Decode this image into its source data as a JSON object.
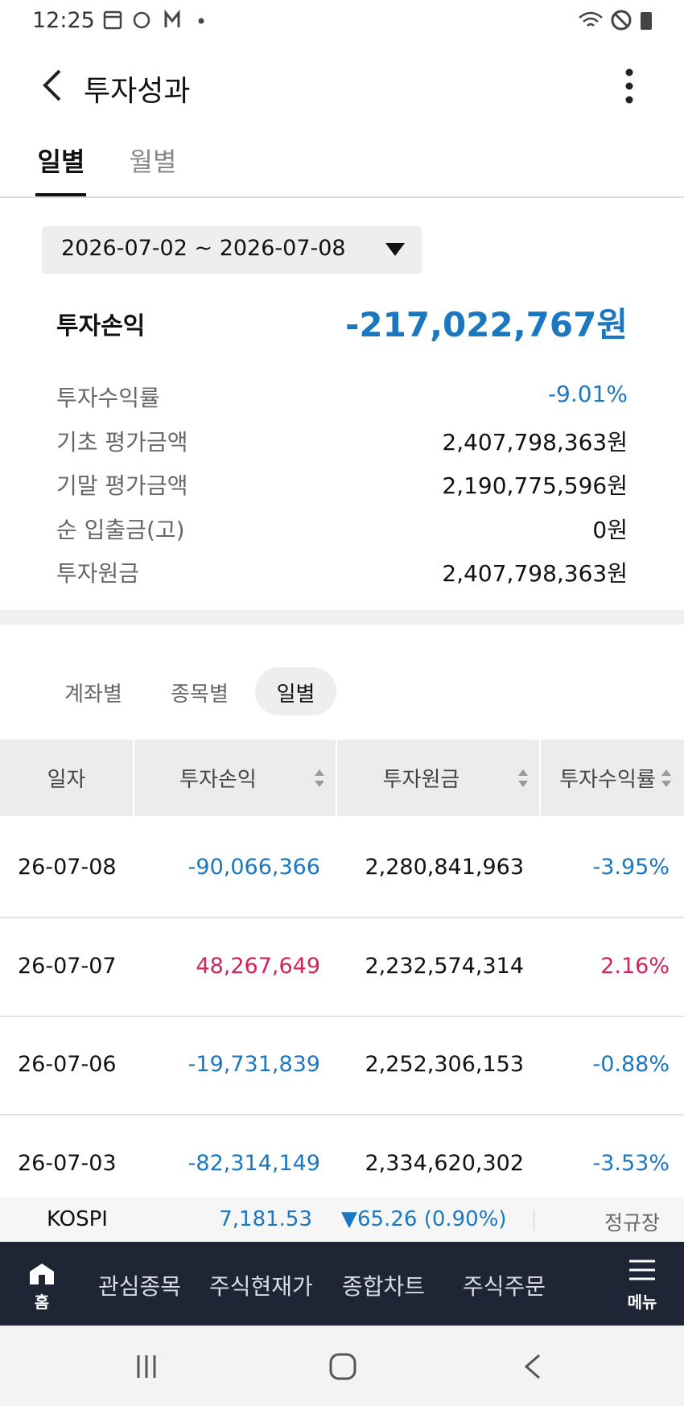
{
  "status": {
    "time": "12:25"
  },
  "header": {
    "title": "투자성과"
  },
  "tabs": [
    "일별",
    "월별"
  ],
  "period": "2026-07-02 ~ 2026-07-08",
  "summary": {
    "label": "투자손익",
    "value": "-217,022,767원"
  },
  "details": [
    [
      "투자수익률",
      "-9.01%"
    ],
    [
      "기초 평가금액",
      "2,407,798,363원"
    ],
    [
      "기말 평가금액",
      "2,190,775,596원"
    ],
    [
      "순 입출금(고)",
      "0원"
    ],
    [
      "투자원금",
      "2,407,798,363원"
    ]
  ],
  "subtabs": [
    "계좌별",
    "종목별",
    "일별"
  ],
  "table": {
    "headers": [
      "일자",
      "투자손익",
      "투자원금",
      "투자수익률"
    ],
    "rows": [
      [
        "26-07-08",
        "-90,066,366",
        "2,280,841,963",
        "-3.95%"
      ],
      [
        "26-07-07",
        "48,267,649",
        "2,232,574,314",
        "2.16%"
      ],
      [
        "26-07-06",
        "-19,731,839",
        "2,252,306,153",
        "-0.88%"
      ],
      [
        "26-07-03",
        "-82,314,149",
        "2,334,620,302",
        "-3.53%"
      ]
    ]
  },
  "ticker": {
    "name": "KOSPI",
    "value": "7,181.53",
    "change": "▼65.26 (0.90%)",
    "session": "정규장"
  },
  "nav": {
    "home": "홈",
    "items": [
      "관심종목",
      "주식현재가",
      "종합차트",
      "주식주문"
    ],
    "menu": "메뉴"
  }
}
